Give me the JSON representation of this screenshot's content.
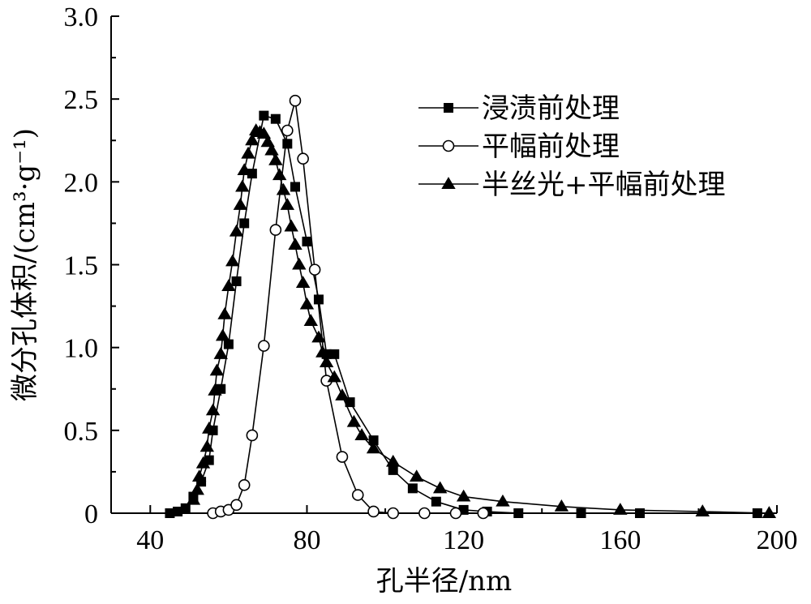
{
  "chart_data": {
    "type": "line",
    "xlabel": "孔半径/nm",
    "ylabel": "微分孔体积/(cm³·g⁻¹)",
    "xlim": [
      30,
      200
    ],
    "ylim": [
      0,
      3.0
    ],
    "x_ticks": [
      40,
      80,
      120,
      160,
      200
    ],
    "x_tick_labels": [
      "40",
      "80",
      "120",
      "160",
      "200"
    ],
    "y_ticks": [
      0,
      0.5,
      1.0,
      1.5,
      2.0,
      2.5,
      3.0
    ],
    "y_tick_labels": [
      "0",
      "0.5",
      "1.0",
      "1.5",
      "2.0",
      "2.5",
      "3.0"
    ],
    "grid": false,
    "legend_position": "top-right",
    "series": [
      {
        "name": "浸渍前处理",
        "marker": "square-filled",
        "points": [
          [
            45,
            0
          ],
          [
            47,
            0.01
          ],
          [
            49,
            0.03
          ],
          [
            51,
            0.1
          ],
          [
            53,
            0.19
          ],
          [
            55,
            0.32
          ],
          [
            56,
            0.5
          ],
          [
            58,
            0.75
          ],
          [
            60,
            1.02
          ],
          [
            62,
            1.4
          ],
          [
            64,
            1.75
          ],
          [
            66,
            2.05
          ],
          [
            69,
            2.4
          ],
          [
            72,
            2.38
          ],
          [
            75,
            2.23
          ],
          [
            77,
            1.97
          ],
          [
            80,
            1.64
          ],
          [
            83,
            1.29
          ],
          [
            85,
            0.96
          ],
          [
            87,
            0.96
          ],
          [
            91,
            0.67
          ],
          [
            97,
            0.44
          ],
          [
            102,
            0.26
          ],
          [
            107,
            0.15
          ],
          [
            113,
            0.07
          ],
          [
            120,
            0.02
          ],
          [
            126,
            0.01
          ],
          [
            134,
            0
          ],
          [
            150,
            0
          ],
          [
            165,
            0
          ],
          [
            195,
            0
          ]
        ]
      },
      {
        "name": "平幅前处理",
        "marker": "circle-open",
        "points": [
          [
            56,
            0
          ],
          [
            58,
            0.01
          ],
          [
            60,
            0.02
          ],
          [
            62,
            0.05
          ],
          [
            64,
            0.17
          ],
          [
            66,
            0.47
          ],
          [
            69,
            1.01
          ],
          [
            72,
            1.71
          ],
          [
            75,
            2.31
          ],
          [
            77,
            2.49
          ],
          [
            79,
            2.14
          ],
          [
            82,
            1.47
          ],
          [
            85,
            0.8
          ],
          [
            89,
            0.34
          ],
          [
            93,
            0.11
          ],
          [
            97,
            0.01
          ],
          [
            102,
            0
          ],
          [
            110,
            0
          ],
          [
            118,
            0
          ],
          [
            125,
            0
          ]
        ]
      },
      {
        "name": "半丝光+平幅前处理",
        "marker": "triangle-filled",
        "points": [
          [
            51,
            0.08
          ],
          [
            52,
            0.14
          ],
          [
            52.5,
            0.22
          ],
          [
            53.5,
            0.3
          ],
          [
            54.5,
            0.4
          ],
          [
            55,
            0.51
          ],
          [
            56,
            0.62
          ],
          [
            56.5,
            0.74
          ],
          [
            57,
            0.86
          ],
          [
            58,
            0.96
          ],
          [
            58.5,
            1.07
          ],
          [
            59,
            1.2
          ],
          [
            60,
            1.37
          ],
          [
            61,
            1.52
          ],
          [
            62,
            1.7
          ],
          [
            63,
            1.86
          ],
          [
            63.5,
            1.97
          ],
          [
            64,
            2.07
          ],
          [
            65,
            2.17
          ],
          [
            66,
            2.25
          ],
          [
            67,
            2.31
          ],
          [
            68,
            2.3
          ],
          [
            69,
            2.29
          ],
          [
            70,
            2.24
          ],
          [
            71,
            2.19
          ],
          [
            72,
            2.13
          ],
          [
            73,
            2.04
          ],
          [
            74,
            1.95
          ],
          [
            75,
            1.86
          ],
          [
            76,
            1.73
          ],
          [
            77,
            1.62
          ],
          [
            78,
            1.5
          ],
          [
            79,
            1.39
          ],
          [
            80,
            1.26
          ],
          [
            81,
            1.16
          ],
          [
            83,
            1.06
          ],
          [
            84,
            0.97
          ],
          [
            85,
            0.91
          ],
          [
            87,
            0.82
          ],
          [
            89,
            0.71
          ],
          [
            92,
            0.55
          ],
          [
            94,
            0.47
          ],
          [
            97,
            0.39
          ],
          [
            102,
            0.31
          ],
          [
            108,
            0.22
          ],
          [
            114,
            0.15
          ],
          [
            120,
            0.1
          ],
          [
            130,
            0.07
          ],
          [
            145,
            0.04
          ],
          [
            160,
            0.02
          ],
          [
            181,
            0.01
          ],
          [
            198,
            0
          ]
        ]
      }
    ]
  }
}
